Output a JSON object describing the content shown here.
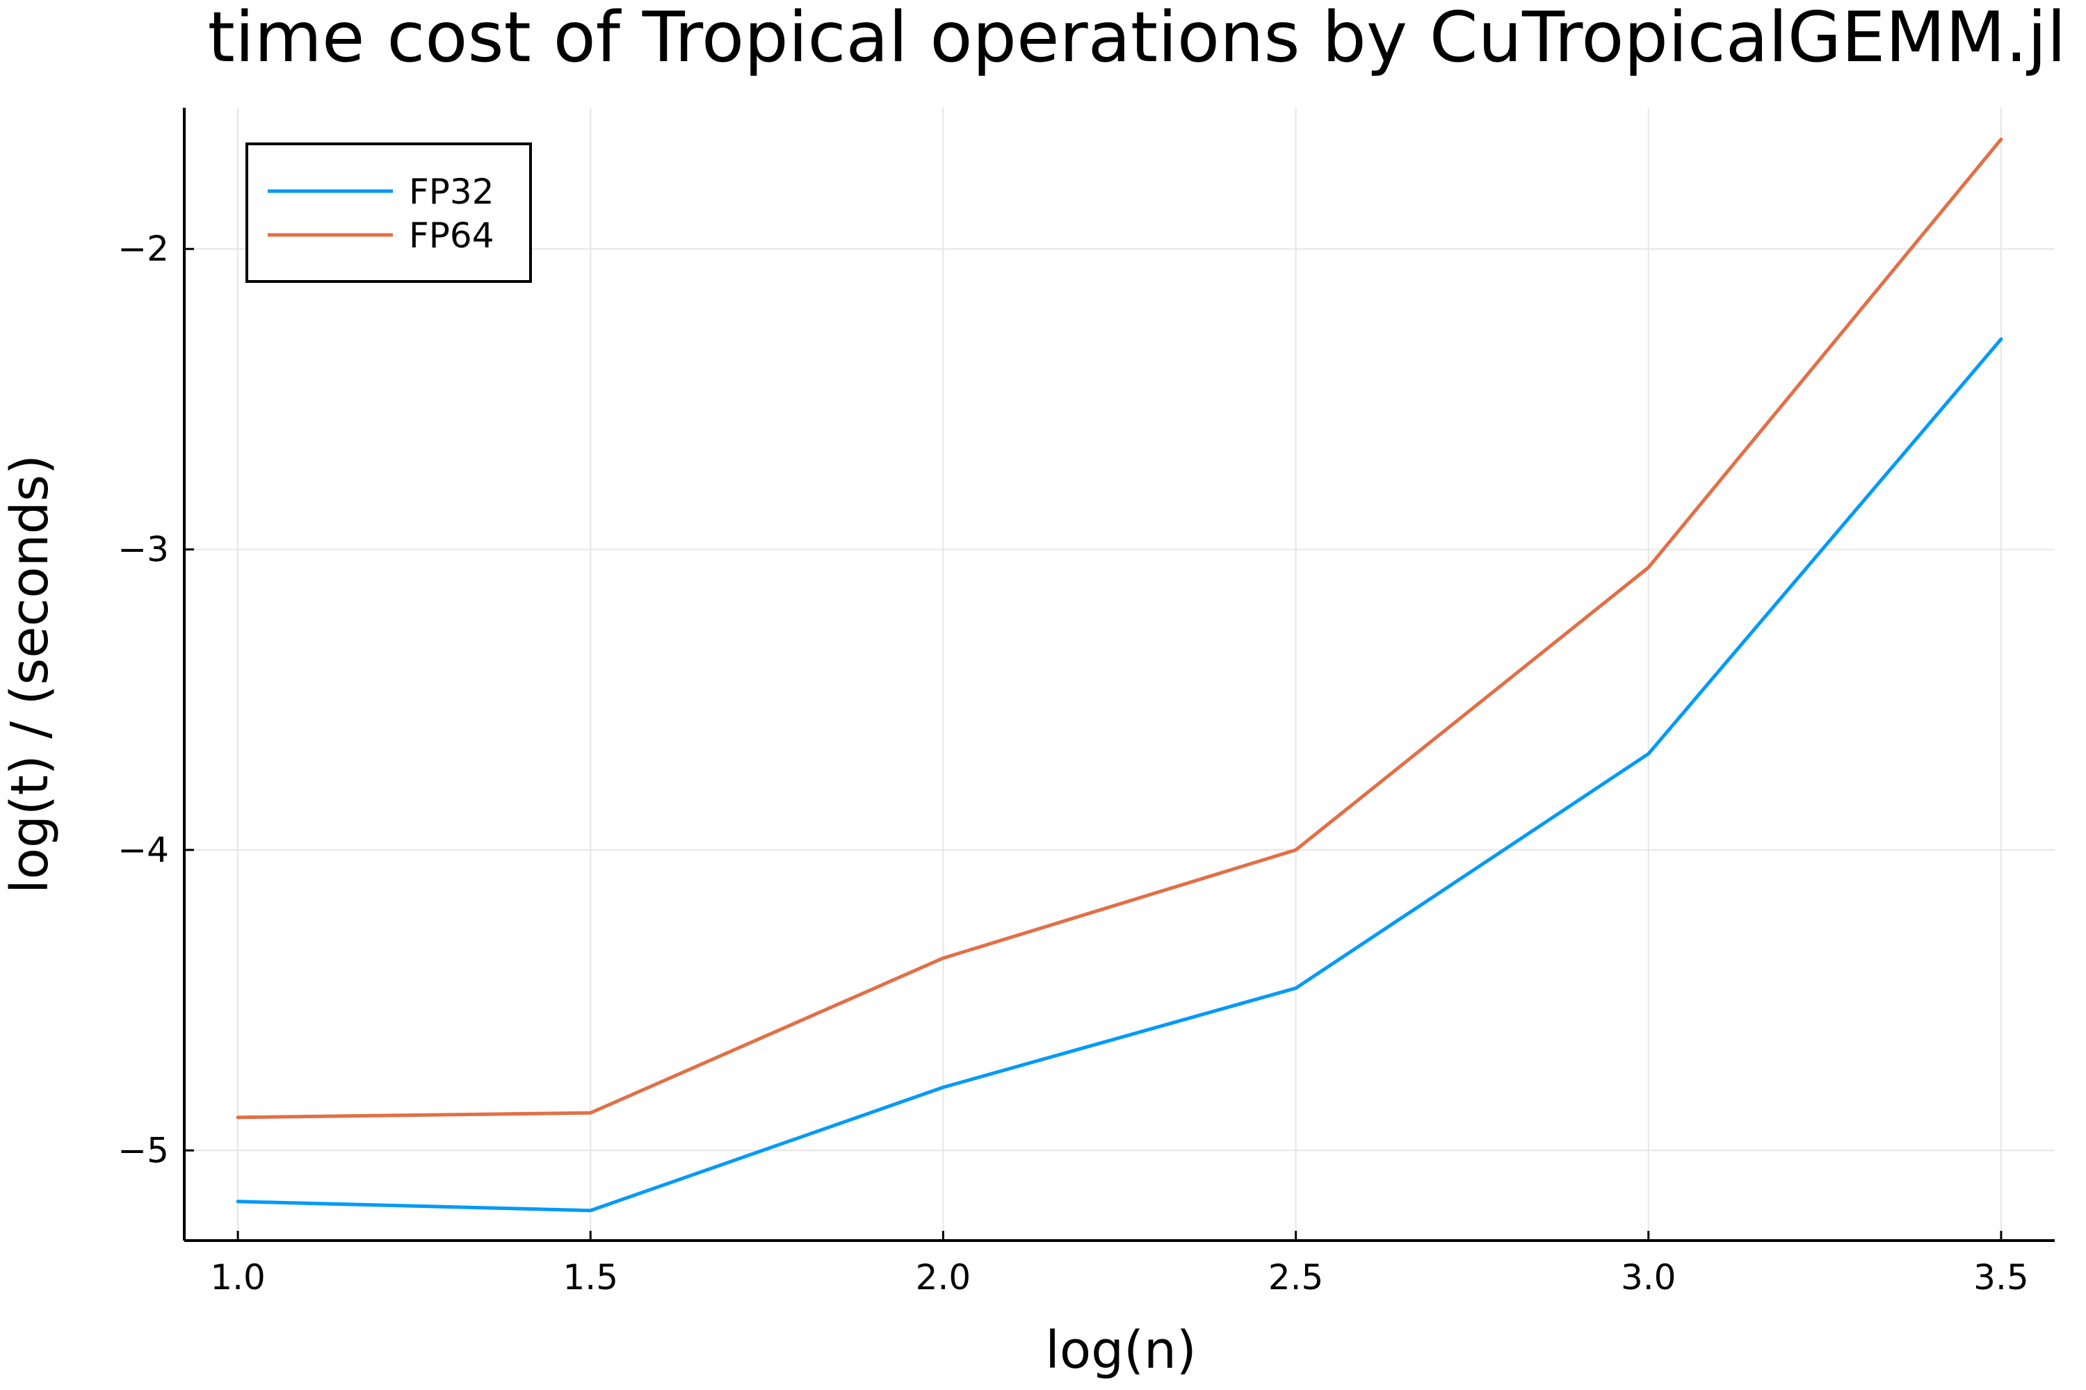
{
  "chart_data": {
    "type": "line",
    "title": "time cost of Tropical operations by CuTropicalGEMM.jl",
    "xlabel": "log(n)",
    "ylabel": "log(t) / (seconds)",
    "x": [
      1.0,
      1.5,
      2.0,
      2.5,
      3.0,
      3.5
    ],
    "xticks": [
      "1.0",
      "1.5",
      "2.0",
      "2.5",
      "3.0",
      "3.5"
    ],
    "yticks": [
      "−5",
      "−4",
      "−3",
      "−2"
    ],
    "ytick_values": [
      -5,
      -4,
      -3,
      -2
    ],
    "xticks_values": [
      1.0,
      1.5,
      2.0,
      2.5,
      3.0,
      3.5
    ],
    "xlim": [
      0.924,
      3.576
    ],
    "ylim": [
      -5.3,
      -1.53
    ],
    "grid": true,
    "legend_position": "top-left",
    "series": [
      {
        "name": "FP32",
        "color": "#009af9",
        "values": [
          -5.17,
          -5.2,
          -4.79,
          -4.46,
          -3.68,
          -2.3
        ]
      },
      {
        "name": "FP64",
        "color": "#e26f46",
        "values": [
          -4.89,
          -4.875,
          -4.36,
          -4.0,
          -3.06,
          -1.635
        ]
      }
    ]
  }
}
